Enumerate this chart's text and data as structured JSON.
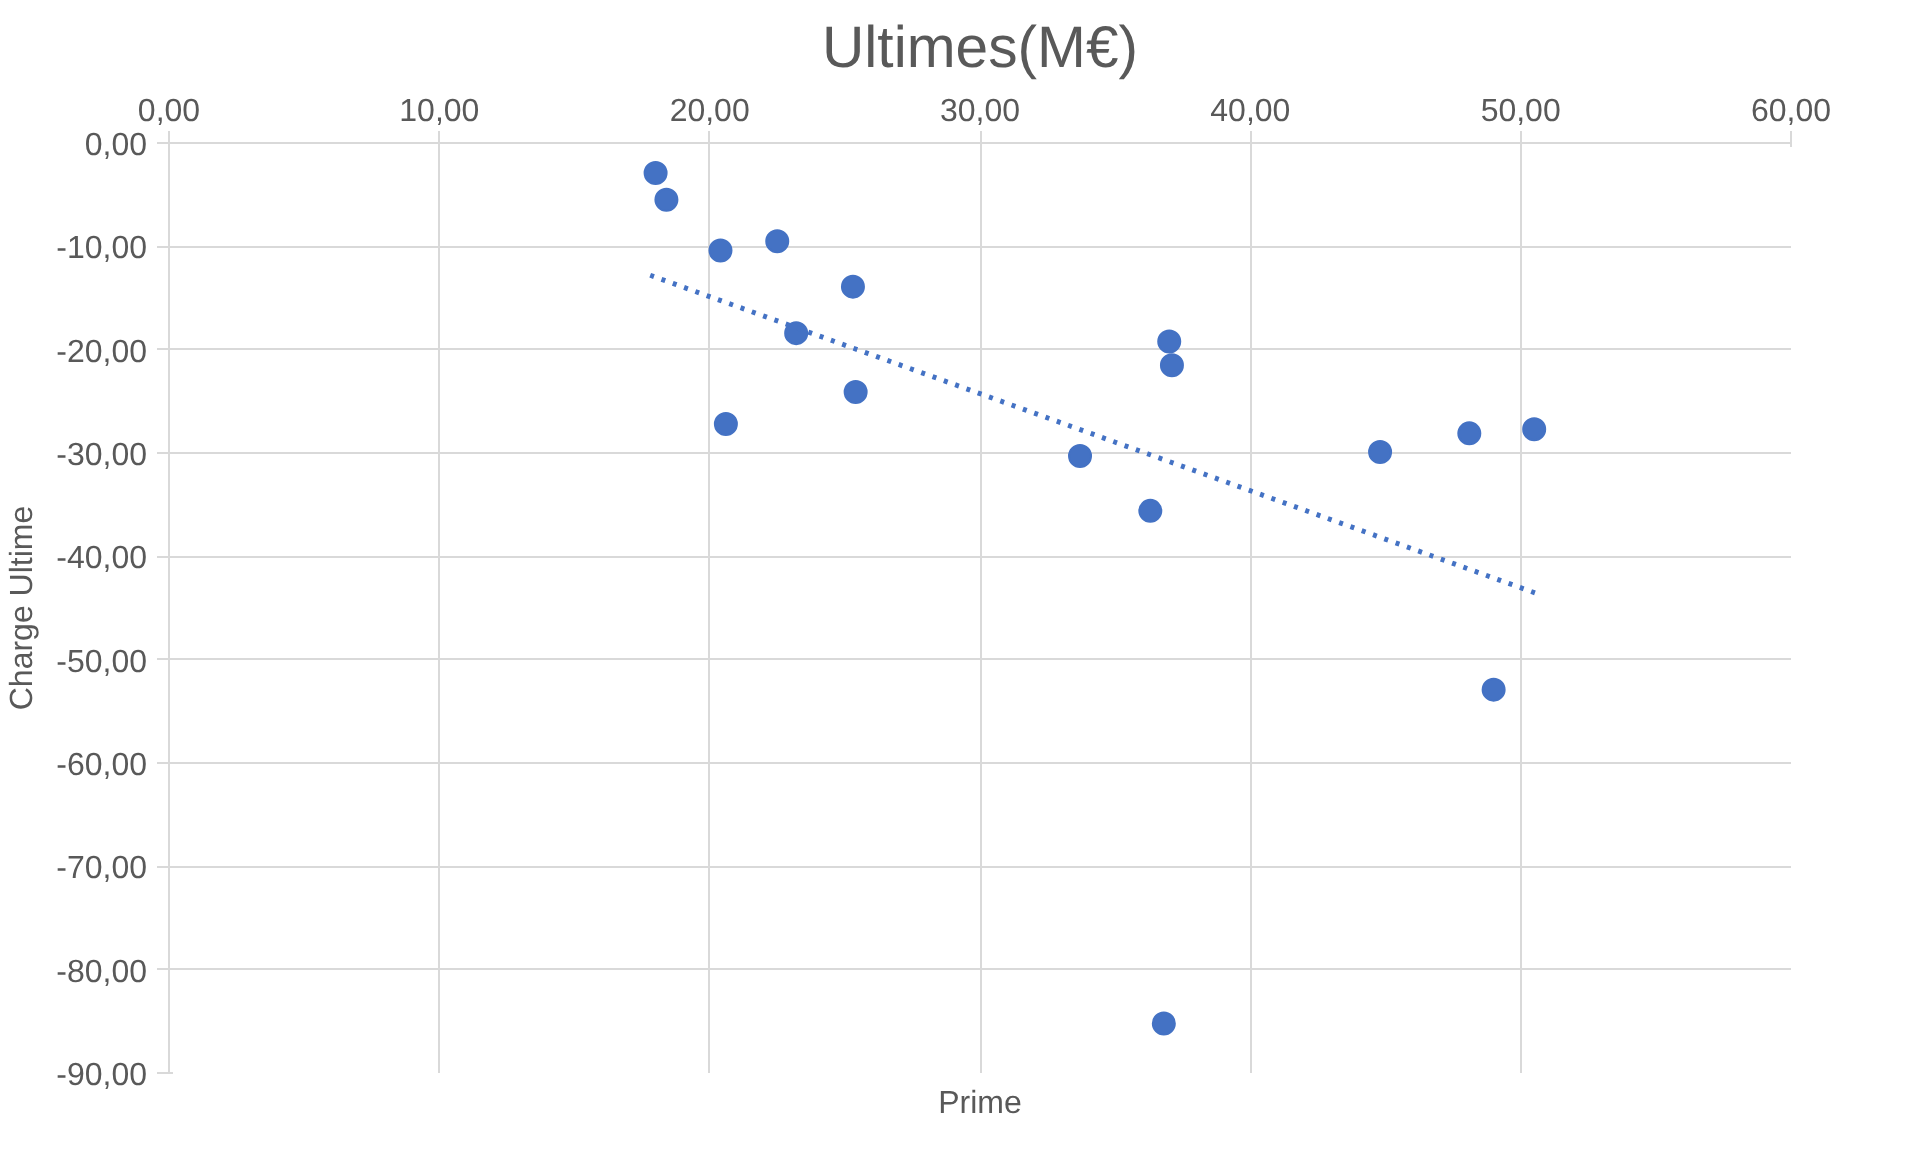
{
  "chart_data": {
    "type": "scatter",
    "title": "Ultimes(M€)",
    "xlabel": "Prime",
    "ylabel": "Charge Ultime",
    "xlim": [
      0,
      60
    ],
    "ylim": [
      -90,
      0
    ],
    "xticks": [
      {
        "value": 0,
        "label": "0,00"
      },
      {
        "value": 10,
        "label": "10,00"
      },
      {
        "value": 20,
        "label": "20,00"
      },
      {
        "value": 30,
        "label": "30,00"
      },
      {
        "value": 40,
        "label": "40,00"
      },
      {
        "value": 50,
        "label": "50,00"
      },
      {
        "value": 60,
        "label": "60,00"
      }
    ],
    "yticks": [
      {
        "value": 0,
        "label": "0,00"
      },
      {
        "value": -10,
        "label": "-10,00"
      },
      {
        "value": -20,
        "label": "-20,00"
      },
      {
        "value": -30,
        "label": "-30,00"
      },
      {
        "value": -40,
        "label": "-40,00"
      },
      {
        "value": -50,
        "label": "-50,00"
      },
      {
        "value": -60,
        "label": "-60,00"
      },
      {
        "value": -70,
        "label": "-70,00"
      },
      {
        "value": -80,
        "label": "-80,00"
      },
      {
        "value": -90,
        "label": "-90,00"
      }
    ],
    "grid": true,
    "series": [
      {
        "marker": "circle",
        "color": "#4472c4",
        "x": [
          18.0,
          18.4,
          20.4,
          22.5,
          25.3,
          23.2,
          20.6,
          25.4,
          33.7,
          37.0,
          37.1,
          36.3,
          44.8,
          48.1,
          50.5,
          49.0,
          36.8
        ],
        "values": [
          -2.9,
          -5.5,
          -10.4,
          -9.5,
          -13.9,
          -18.4,
          -27.2,
          -24.1,
          -30.3,
          -19.2,
          -21.5,
          -35.6,
          -29.9,
          -28.1,
          -27.7,
          -52.9,
          -85.2
        ]
      },
      {
        "type": "line",
        "marker": "none",
        "color": "#4472c4",
        "line_style": "dotted",
        "x": [
          17.8,
          50.6
        ],
        "values": [
          -12.8,
          -43.6
        ]
      }
    ]
  }
}
